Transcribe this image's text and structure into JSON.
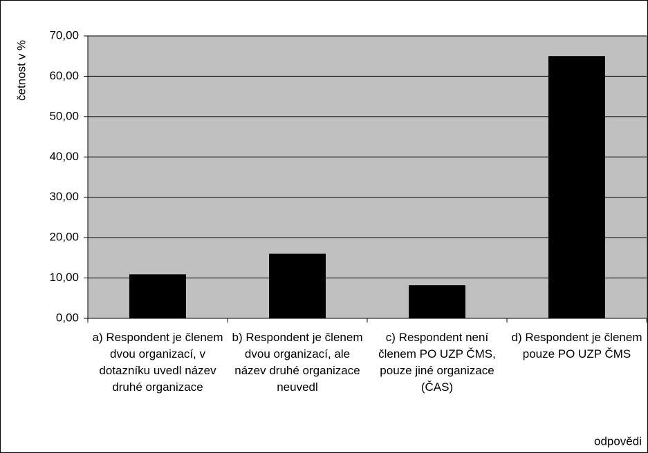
{
  "chart_data": {
    "type": "bar",
    "categories": [
      "a) Respondent je členem dvou organizací, v dotazníku uvedl název druhé organizace",
      "b) Respondent je členem dvou organizací, ale název druhé organizace neuvedl",
      "c) Respondent není členem PO UZP ČMS, pouze jiné organizace (ČAS)",
      "d) Respondent je členem pouze PO UZP ČMS"
    ],
    "values": [
      10.9,
      16,
      8.2,
      65
    ],
    "color": "#000000",
    "y_label": "četnost v %",
    "x_label": "odpovědi",
    "ylim": [
      0,
      70
    ],
    "yticks": [
      {
        "value": 0,
        "label": "0,00"
      },
      {
        "value": 10,
        "label": "10,00"
      },
      {
        "value": 20,
        "label": "20,00"
      },
      {
        "value": 30,
        "label": "30,00"
      },
      {
        "value": 40,
        "label": "40,00"
      },
      {
        "value": 50,
        "label": "50,00"
      },
      {
        "value": 60,
        "label": "60,00"
      },
      {
        "value": 70,
        "label": "70,00"
      }
    ],
    "grid": true
  }
}
